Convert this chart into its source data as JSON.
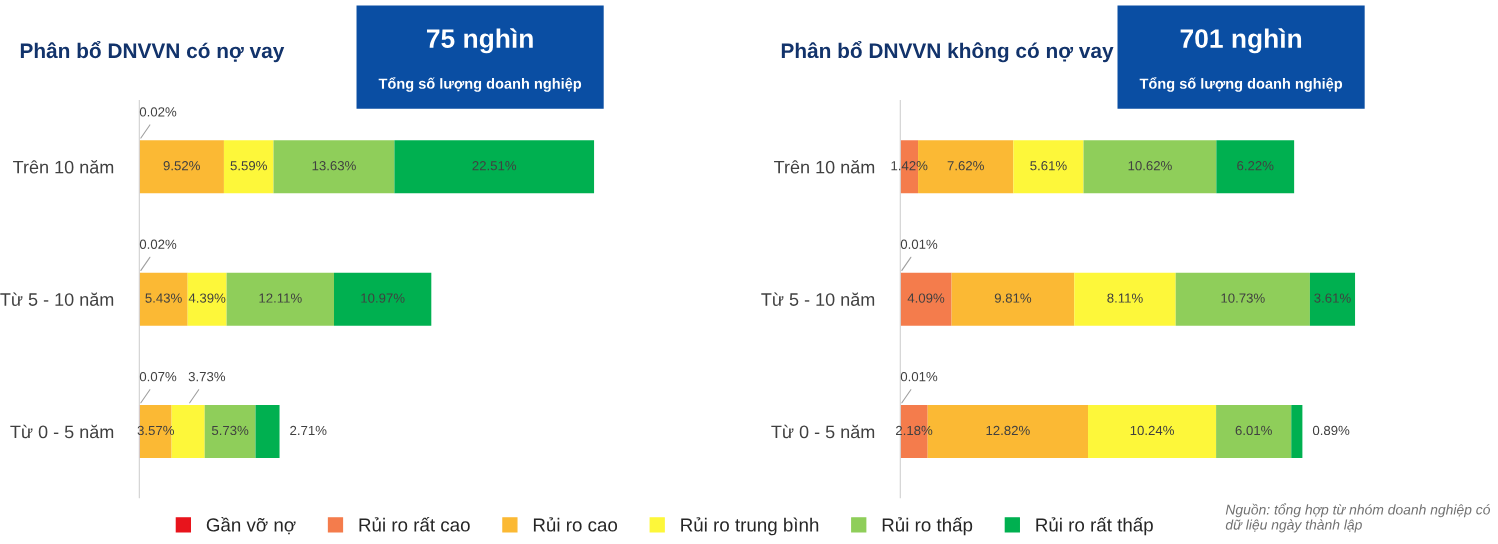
{
  "chart_data": [
    {
      "type": "bar",
      "orientation": "horizontal",
      "stacked": true,
      "title": "Phân bổ DNVVN có nợ vay",
      "annotations": [
        "75 nghìn",
        "Tổng số lượng doanh nghiệp"
      ],
      "categories": [
        "Trên 10 năm",
        "Từ 5 - 10 năm",
        "Từ 0 - 5 năm"
      ],
      "series": [
        {
          "color": "#e8141c",
          "values": [
            0.02,
            0.02,
            0.07
          ],
          "value_labels": [
            "0.02%",
            "0.02%",
            "0.07%"
          ]
        },
        {
          "color": "#fbb934",
          "values": [
            9.52,
            5.43,
            3.57
          ],
          "value_labels": [
            "9.52%",
            "5.43%",
            "3.57%"
          ]
        },
        {
          "color": "#fdf73a",
          "values": [
            5.59,
            4.39,
            3.73
          ],
          "value_labels": [
            "5.59%",
            "4.39%",
            "3.73%"
          ]
        },
        {
          "color": "#8fce5a",
          "values": [
            13.63,
            12.11,
            5.73
          ],
          "value_labels": [
            "13.63%",
            "12.11%",
            "5.73%"
          ]
        },
        {
          "color": "#00b050",
          "values": [
            22.51,
            10.97,
            2.71
          ],
          "value_labels": [
            "22.51%",
            "10.97%",
            "2.71%"
          ]
        }
      ]
    },
    {
      "type": "bar",
      "orientation": "horizontal",
      "stacked": true,
      "title": "Phân bổ DNVVN không có nợ vay",
      "annotations": [
        "701 nghìn",
        "Tổng số lượng doanh nghiệp",
        "Nguồn: tổng hợp từ nhóm doanh nghiệp có dữ liệu ngày thành lập"
      ],
      "categories": [
        "Trên 10 năm",
        "Từ 5 - 10 năm",
        "Từ 0 - 5 năm"
      ],
      "legend": "bottom",
      "series": [
        {
          "name": "Gần vỡ nợ",
          "color": "#e8141c",
          "values": [
            null,
            0.01,
            0.01
          ],
          "value_labels": [
            null,
            "0.01%",
            "0.01%"
          ]
        },
        {
          "name": "Rủi ro rất cao",
          "color": "#f47c4c",
          "values": [
            1.42,
            4.09,
            2.18
          ],
          "value_labels": [
            "1.42%",
            "4.09%",
            "2.18%"
          ]
        },
        {
          "name": "Rủi ro cao",
          "color": "#fbb934",
          "values": [
            7.62,
            9.81,
            12.82
          ],
          "value_labels": [
            "7.62%",
            "9.81%",
            "12.82%"
          ]
        },
        {
          "name": "Rủi ro trung bình",
          "color": "#fdf73a",
          "values": [
            5.61,
            8.11,
            10.24
          ],
          "value_labels": [
            "5.61%",
            "8.11%",
            "10.24%"
          ]
        },
        {
          "name": "Rủi ro thấp",
          "color": "#8fce5a",
          "values": [
            10.62,
            10.73,
            6.01
          ],
          "value_labels": [
            "10.62%",
            "10.73%",
            "6.01%"
          ]
        },
        {
          "name": "Rủi ro rất thấp",
          "color": "#00b050",
          "values": [
            6.22,
            3.61,
            0.89
          ],
          "value_labels": [
            "6.22%",
            "3.61%",
            "0.89%"
          ]
        }
      ]
    }
  ]
}
